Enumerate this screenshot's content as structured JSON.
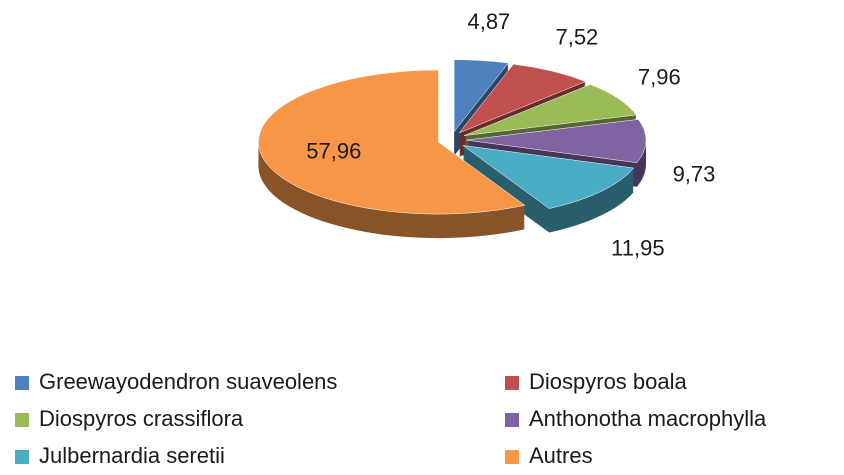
{
  "chart_data": {
    "type": "pie",
    "categories": [
      "Greewayodendron suaveolens",
      "Diospyros boala",
      "Diospyros crassiflora",
      "Anthonotha macrophylla",
      "Julbernardia seretii",
      "Autres"
    ],
    "values": [
      4.87,
      7.52,
      7.96,
      9.73,
      11.95,
      57.96
    ],
    "value_labels": [
      "4,87",
      "7,52",
      "7,96",
      "9,73",
      "11,95",
      "57,96"
    ],
    "colors": [
      "#4f81bd",
      "#c0504d",
      "#9bbb59",
      "#8064a2",
      "#4bacc6",
      "#f79646"
    ],
    "legend": "bottom"
  }
}
